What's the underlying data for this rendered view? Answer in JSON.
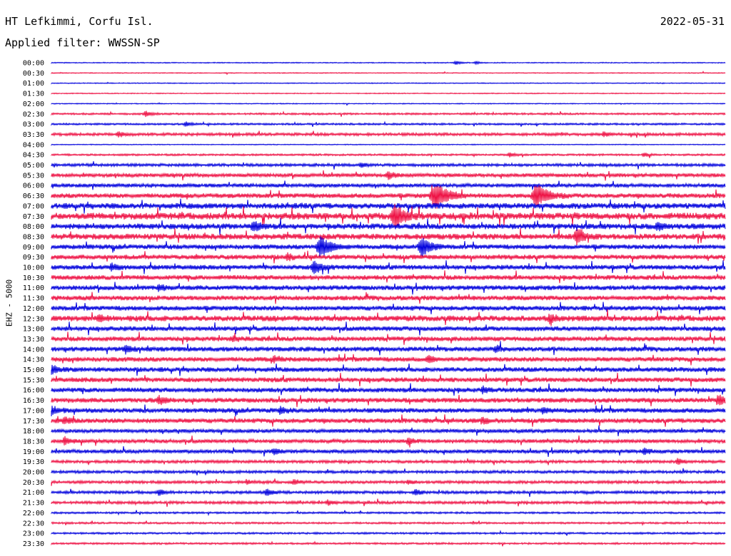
{
  "header": {
    "station": "HT Lefkimmi, Corfu Isl.",
    "date": "2022-05-31",
    "filter": "Applied filter: WWSSN-SP",
    "channel": "EHZ - 5000"
  },
  "chart_data": {
    "type": "line",
    "title": "HT Lefkimmi, Corfu Isl.",
    "ylabel": "EHZ - 5000",
    "time_labels": [
      "00:00",
      "00:30",
      "01:00",
      "01:30",
      "02:00",
      "02:30",
      "03:00",
      "03:30",
      "04:00",
      "04:30",
      "05:00",
      "05:30",
      "06:00",
      "06:30",
      "07:00",
      "07:30",
      "08:00",
      "08:30",
      "09:00",
      "09:30",
      "10:00",
      "10:30",
      "11:00",
      "11:30",
      "12:00",
      "12:30",
      "13:00",
      "13:30",
      "14:00",
      "14:30",
      "15:00",
      "15:30",
      "16:00",
      "16:30",
      "17:00",
      "17:30",
      "18:00",
      "18:30",
      "19:00",
      "19:30",
      "20:00",
      "20:30",
      "21:00",
      "21:30",
      "22:00",
      "22:30",
      "23:00",
      "23:30"
    ],
    "colors": [
      "#0000dd",
      "#ee1144"
    ],
    "noise_level": [
      1,
      1,
      1,
      1,
      1,
      2,
      2,
      3,
      1,
      2,
      3,
      4,
      4,
      5,
      6,
      7,
      6,
      6,
      5,
      5,
      5,
      5,
      5,
      5,
      5,
      6,
      5,
      5,
      5,
      5,
      5,
      5,
      5,
      5,
      5,
      5,
      4,
      4,
      4,
      3,
      3,
      3,
      3,
      3,
      2,
      2,
      2,
      2
    ],
    "events": [
      {
        "line": 0,
        "x": 0.6,
        "amp": 3
      },
      {
        "line": 0,
        "x": 0.63,
        "amp": 2
      },
      {
        "line": 5,
        "x": 0.14,
        "amp": 4
      },
      {
        "line": 6,
        "x": 0.2,
        "amp": 3
      },
      {
        "line": 7,
        "x": 0.1,
        "amp": 4
      },
      {
        "line": 7,
        "x": 0.82,
        "amp": 3
      },
      {
        "line": 9,
        "x": 0.68,
        "amp": 3
      },
      {
        "line": 9,
        "x": 0.88,
        "amp": 3
      },
      {
        "line": 10,
        "x": 0.46,
        "amp": 3
      },
      {
        "line": 11,
        "x": 0.5,
        "amp": 5
      },
      {
        "line": 13,
        "x": 0.57,
        "amp": 18
      },
      {
        "line": 13,
        "x": 0.72,
        "amp": 16
      },
      {
        "line": 15,
        "x": 0.51,
        "amp": 14
      },
      {
        "line": 16,
        "x": 0.3,
        "amp": 6
      },
      {
        "line": 16,
        "x": 0.9,
        "amp": 5
      },
      {
        "line": 17,
        "x": 0.78,
        "amp": 9
      },
      {
        "line": 18,
        "x": 0.4,
        "amp": 14
      },
      {
        "line": 18,
        "x": 0.55,
        "amp": 12
      },
      {
        "line": 19,
        "x": 0.35,
        "amp": 4
      },
      {
        "line": 20,
        "x": 0.39,
        "amp": 8
      },
      {
        "line": 20,
        "x": 0.09,
        "amp": 4
      },
      {
        "line": 22,
        "x": 0.16,
        "amp": 4
      },
      {
        "line": 25,
        "x": 0.07,
        "amp": 5
      },
      {
        "line": 25,
        "x": 0.74,
        "amp": 5
      },
      {
        "line": 27,
        "x": 0.27,
        "amp": 3
      },
      {
        "line": 28,
        "x": 0.11,
        "amp": 5
      },
      {
        "line": 28,
        "x": 0.66,
        "amp": 4
      },
      {
        "line": 29,
        "x": 0.33,
        "amp": 4
      },
      {
        "line": 29,
        "x": 0.56,
        "amp": 4
      },
      {
        "line": 30,
        "x": 0.0,
        "amp": 6
      },
      {
        "line": 32,
        "x": 0.64,
        "amp": 4
      },
      {
        "line": 33,
        "x": 0.16,
        "amp": 5
      },
      {
        "line": 33,
        "x": 0.99,
        "amp": 7
      },
      {
        "line": 34,
        "x": 0.0,
        "amp": 6
      },
      {
        "line": 34,
        "x": 0.34,
        "amp": 5
      },
      {
        "line": 34,
        "x": 0.73,
        "amp": 4
      },
      {
        "line": 35,
        "x": 0.02,
        "amp": 4
      },
      {
        "line": 35,
        "x": 0.64,
        "amp": 4
      },
      {
        "line": 37,
        "x": 0.02,
        "amp": 5
      },
      {
        "line": 37,
        "x": 0.53,
        "amp": 4
      },
      {
        "line": 38,
        "x": 0.33,
        "amp": 4
      },
      {
        "line": 38,
        "x": 0.88,
        "amp": 4
      },
      {
        "line": 39,
        "x": 0.93,
        "amp": 4
      },
      {
        "line": 41,
        "x": 0.29,
        "amp": 3
      },
      {
        "line": 41,
        "x": 0.36,
        "amp": 4
      },
      {
        "line": 41,
        "x": 0.53,
        "amp": 3
      },
      {
        "line": 42,
        "x": 0.16,
        "amp": 4
      },
      {
        "line": 42,
        "x": 0.32,
        "amp": 5
      },
      {
        "line": 42,
        "x": 0.54,
        "amp": 4
      },
      {
        "line": 43,
        "x": 0.41,
        "amp": 3
      }
    ]
  }
}
